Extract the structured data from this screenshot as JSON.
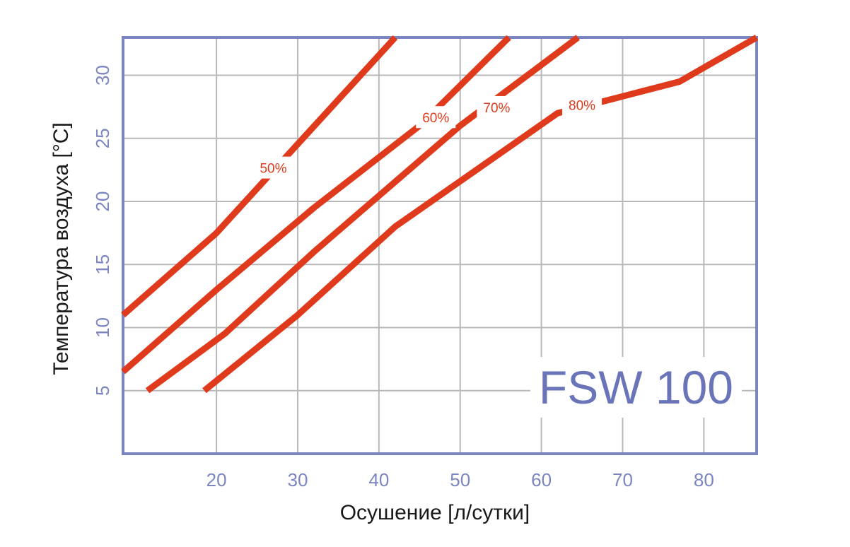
{
  "chart_data": {
    "type": "line",
    "model_label": "FSW 100",
    "xlabel": "Осушение [л/сутки]",
    "ylabel": "Температура воздуха [°C]",
    "xlim": [
      8.5,
      86.5
    ],
    "ylim": [
      0,
      33
    ],
    "x_ticks": [
      20,
      30,
      40,
      50,
      60,
      70,
      80
    ],
    "y_ticks": [
      5,
      10,
      15,
      20,
      25,
      30
    ],
    "grid": true,
    "colors": {
      "axis": "#7b86c0",
      "grid": "#b8b8b8",
      "series": "#e03a1c",
      "text": "#1a1a1a"
    },
    "series": [
      {
        "name": "50%",
        "label_at": [
          27,
          22.6
        ],
        "points": [
          [
            8.5,
            11
          ],
          [
            20,
            17.5
          ],
          [
            42,
            33
          ]
        ]
      },
      {
        "name": "60%",
        "label_at": [
          47,
          26.6
        ],
        "points": [
          [
            8.5,
            6.5
          ],
          [
            20,
            13
          ],
          [
            32,
            19.5
          ],
          [
            45,
            26
          ],
          [
            56,
            33
          ]
        ]
      },
      {
        "name": "70%",
        "label_at": [
          54.5,
          27.4
        ],
        "points": [
          [
            11.5,
            5
          ],
          [
            21,
            9.5
          ],
          [
            32,
            16
          ],
          [
            50,
            26
          ],
          [
            64.5,
            33
          ]
        ]
      },
      {
        "name": "80%",
        "label_at": [
          65,
          27.6
        ],
        "points": [
          [
            18.5,
            5
          ],
          [
            30,
            11
          ],
          [
            42,
            18
          ],
          [
            62,
            27
          ],
          [
            77,
            29.5
          ],
          [
            86.5,
            33
          ]
        ]
      }
    ]
  }
}
